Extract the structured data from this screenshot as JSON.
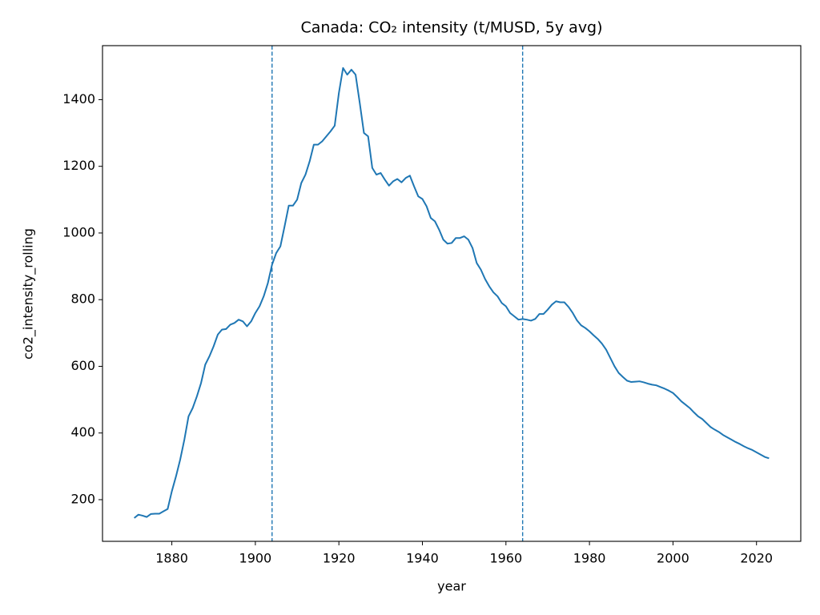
{
  "chart_data": {
    "type": "line",
    "title": "Canada: CO₂ intensity (t/MUSD, 5y avg)",
    "x_label": "year",
    "y_label": "co2_intensity_rolling",
    "x": [
      1871,
      1872,
      1873,
      1874,
      1875,
      1876,
      1877,
      1878,
      1879,
      1880,
      1881,
      1882,
      1883,
      1884,
      1885,
      1886,
      1887,
      1888,
      1889,
      1890,
      1891,
      1892,
      1893,
      1894,
      1895,
      1896,
      1897,
      1898,
      1899,
      1900,
      1901,
      1902,
      1903,
      1904,
      1905,
      1906,
      1907,
      1908,
      1909,
      1910,
      1911,
      1912,
      1913,
      1914,
      1915,
      1916,
      1917,
      1918,
      1919,
      1920,
      1921,
      1922,
      1923,
      1924,
      1925,
      1926,
      1927,
      1928,
      1929,
      1930,
      1931,
      1932,
      1933,
      1934,
      1935,
      1936,
      1937,
      1938,
      1939,
      1940,
      1941,
      1942,
      1943,
      1944,
      1945,
      1946,
      1947,
      1948,
      1949,
      1950,
      1951,
      1952,
      1953,
      1954,
      1955,
      1956,
      1957,
      1958,
      1959,
      1960,
      1961,
      1962,
      1963,
      1964,
      1965,
      1966,
      1967,
      1968,
      1969,
      1970,
      1971,
      1972,
      1973,
      1974,
      1975,
      1976,
      1977,
      1978,
      1979,
      1980,
      1981,
      1982,
      1983,
      1984,
      1985,
      1986,
      1987,
      1988,
      1989,
      1990,
      1991,
      1992,
      1993,
      1994,
      1995,
      1996,
      1997,
      1998,
      1999,
      2000,
      2001,
      2002,
      2003,
      2004,
      2005,
      2006,
      2007,
      2008,
      2009,
      2010,
      2011,
      2012,
      2013,
      2014,
      2015,
      2016,
      2017,
      2018,
      2019,
      2020,
      2021,
      2022,
      2023
    ],
    "series": [
      {
        "name": "co2_intensity_rolling",
        "color": "#1f77b4",
        "values": [
          145,
          155,
          152,
          148,
          157,
          158,
          158,
          165,
          172,
          225,
          270,
          320,
          380,
          450,
          475,
          510,
          550,
          605,
          630,
          660,
          695,
          710,
          712,
          725,
          730,
          740,
          735,
          720,
          735,
          760,
          780,
          810,
          850,
          905,
          940,
          960,
          1020,
          1082,
          1082,
          1100,
          1150,
          1175,
          1215,
          1265,
          1265,
          1275,
          1290,
          1305,
          1322,
          1420,
          1495,
          1475,
          1490,
          1475,
          1390,
          1300,
          1290,
          1195,
          1175,
          1180,
          1160,
          1142,
          1155,
          1162,
          1152,
          1165,
          1172,
          1140,
          1110,
          1102,
          1080,
          1045,
          1035,
          1010,
          980,
          968,
          970,
          985,
          985,
          990,
          980,
          955,
          910,
          890,
          862,
          840,
          822,
          810,
          790,
          780,
          760,
          750,
          740,
          742,
          740,
          737,
          742,
          757,
          757,
          770,
          785,
          795,
          792,
          792,
          778,
          760,
          738,
          723,
          715,
          705,
          693,
          682,
          668,
          650,
          625,
          600,
          580,
          568,
          557,
          553,
          554,
          555,
          552,
          548,
          545,
          543,
          538,
          533,
          527,
          520,
          508,
          495,
          485,
          475,
          462,
          450,
          442,
          430,
          418,
          410,
          403,
          394,
          387,
          380,
          373,
          367,
          360,
          354,
          349,
          342,
          335,
          328,
          324
        ]
      }
    ],
    "vlines": [
      1904,
      1964
    ],
    "vline_color": "#1f77b4",
    "xlim": [
      1863.4,
      2030.6
    ],
    "ylim": [
      75,
      1562
    ],
    "xticks": [
      1880,
      1900,
      1920,
      1940,
      1960,
      1980,
      2000,
      2020
    ],
    "yticks": [
      200,
      400,
      600,
      800,
      1000,
      1200,
      1400
    ],
    "grid": false
  }
}
